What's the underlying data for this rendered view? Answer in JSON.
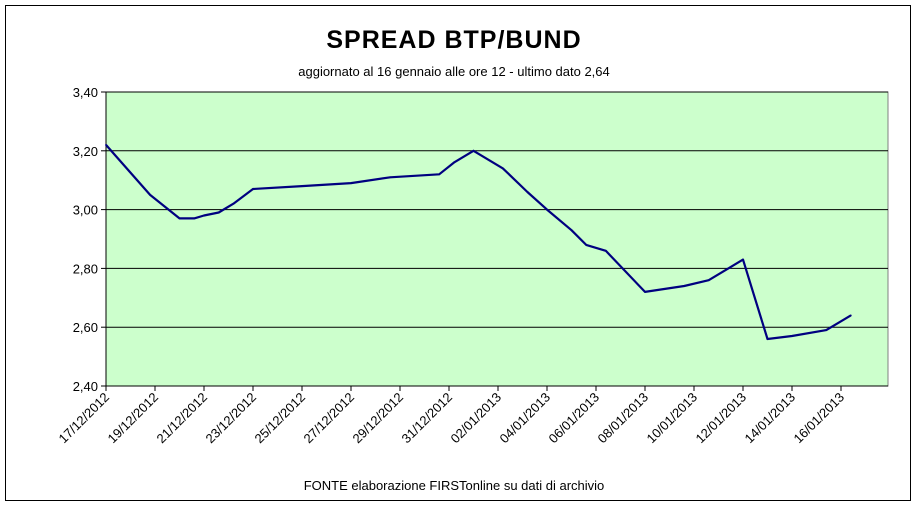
{
  "chart_data": {
    "type": "line",
    "title": "SPREAD  BTP/BUND",
    "subtitle": "aggiornato al 16 gennaio alle ore 12 - ultimo dato 2,64",
    "source": "FONTE elaborazione FIRSTonline su dati di archivio",
    "xlabel": "",
    "ylabel": "",
    "ylim": [
      2.4,
      3.4
    ],
    "y_ticks": [
      "2,40",
      "2,60",
      "2,80",
      "3,00",
      "3,20",
      "3,40"
    ],
    "x_ticks": [
      "17/12/2012",
      "19/12/2012",
      "21/12/2012",
      "23/12/2012",
      "25/12/2012",
      "27/12/2012",
      "29/12/2012",
      "31/12/2012",
      "02/01/2013",
      "04/01/2013",
      "06/01/2013",
      "08/01/2013",
      "10/01/2013",
      "12/01/2013",
      "14/01/2013",
      "16/01/2013"
    ],
    "grid": true,
    "plot_background": "#ccffcc",
    "line_color": "#000080",
    "series": [
      {
        "x": [
          0,
          0.9,
          1.5,
          1.8,
          2.0,
          2.3,
          2.6,
          3.0,
          4.0,
          5.0,
          5.8,
          6.8,
          7.1,
          7.5,
          8.1,
          8.6,
          9.0,
          9.5,
          9.8,
          10.2,
          11.0,
          11.8,
          12.3,
          12.7,
          13.0,
          13.5,
          14.0,
          14.7,
          15.2
        ],
        "y": [
          3.22,
          3.05,
          2.97,
          2.97,
          2.98,
          2.99,
          3.02,
          3.07,
          3.08,
          3.09,
          3.11,
          3.12,
          3.16,
          3.2,
          3.14,
          3.06,
          3.0,
          2.93,
          2.88,
          2.86,
          2.72,
          2.74,
          2.76,
          2.8,
          2.83,
          2.56,
          2.57,
          2.59,
          2.64
        ]
      }
    ]
  }
}
